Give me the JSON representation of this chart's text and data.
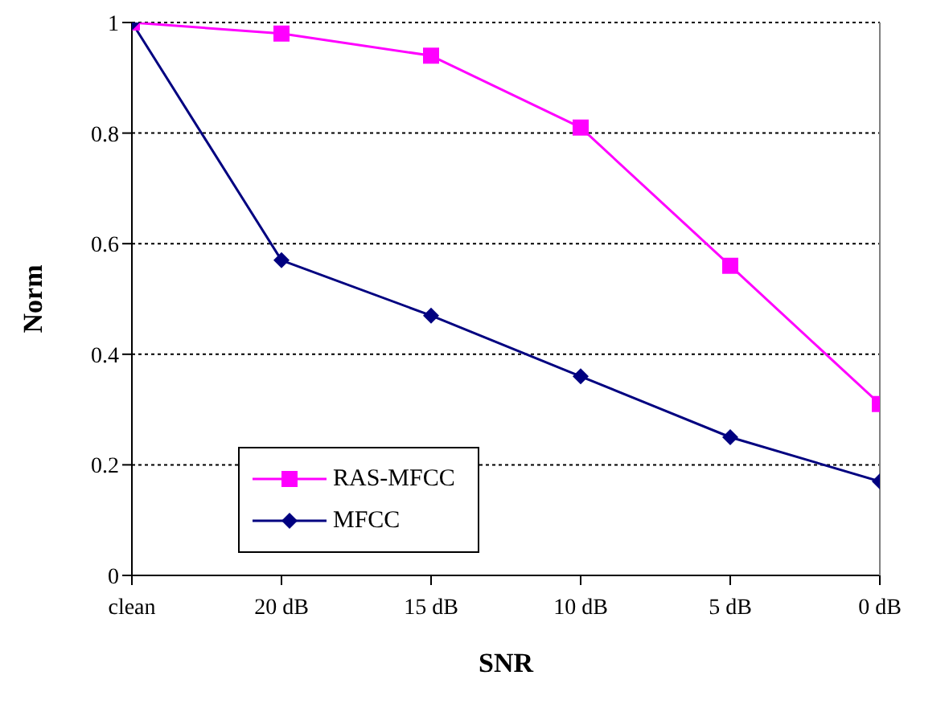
{
  "chart_data": {
    "type": "line",
    "xlabel": "SNR",
    "ylabel": "Norm",
    "categories": [
      "clean",
      "20 dB",
      "15 dB",
      "10 dB",
      "5 dB",
      "0 dB"
    ],
    "series": [
      {
        "name": "RAS-MFCC",
        "color": "#ff00ff",
        "marker": "square",
        "values": [
          1,
          0.98,
          0.94,
          0.81,
          0.56,
          0.31
        ]
      },
      {
        "name": "MFCC",
        "color": "#000080",
        "marker": "diamond",
        "values": [
          1,
          0.57,
          0.47,
          0.36,
          0.25,
          0.17
        ]
      }
    ],
    "ylim": [
      0,
      1
    ],
    "yticks": [
      0,
      0.2,
      0.4,
      0.6,
      0.8,
      1
    ],
    "grid": "y",
    "legend": "bottom left",
    "line_style": "solid"
  }
}
